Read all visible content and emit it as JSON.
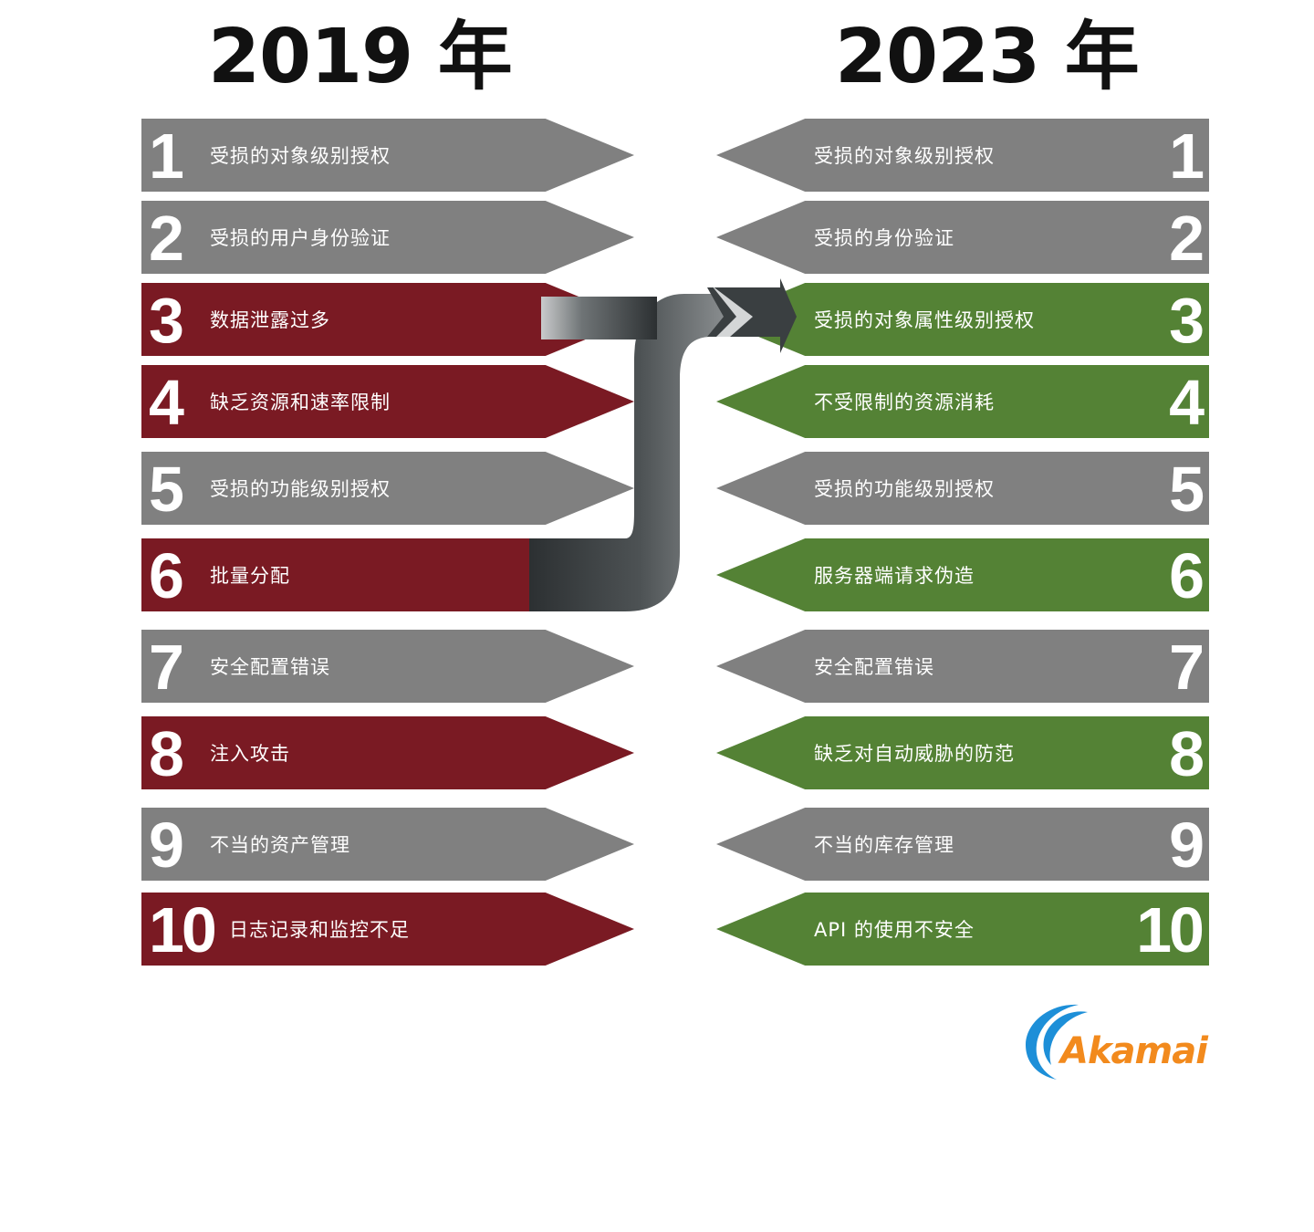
{
  "titles": {
    "left": "2019 年",
    "right": "2023 年"
  },
  "colors": {
    "gray": "#808080",
    "red": "#7a1a23",
    "green": "#548235",
    "logo_orange": "#f28a1d",
    "logo_blue": "#1d8fd8"
  },
  "left_list": [
    {
      "num": "1",
      "label": "受损的对象级别授权",
      "color": "gray"
    },
    {
      "num": "2",
      "label": "受损的用户身份验证",
      "color": "gray"
    },
    {
      "num": "3",
      "label": "数据泄露过多",
      "color": "red"
    },
    {
      "num": "4",
      "label": "缺乏资源和速率限制",
      "color": "red"
    },
    {
      "num": "5",
      "label": "受损的功能级别授权",
      "color": "gray"
    },
    {
      "num": "6",
      "label": "批量分配",
      "color": "red"
    },
    {
      "num": "7",
      "label": "安全配置错误",
      "color": "gray"
    },
    {
      "num": "8",
      "label": "注入攻击",
      "color": "red"
    },
    {
      "num": "9",
      "label": "不当的资产管理",
      "color": "gray"
    },
    {
      "num": "10",
      "label": "日志记录和监控不足",
      "color": "red"
    }
  ],
  "right_list": [
    {
      "num": "1",
      "label": "受损的对象级别授权",
      "color": "gray"
    },
    {
      "num": "2",
      "label": "受损的身份验证",
      "color": "gray"
    },
    {
      "num": "3",
      "label": "受损的对象属性级别授权",
      "color": "green"
    },
    {
      "num": "4",
      "label": "不受限制的资源消耗",
      "color": "green"
    },
    {
      "num": "5",
      "label": "受损的功能级别授权",
      "color": "gray"
    },
    {
      "num": "6",
      "label": "服务器端请求伪造",
      "color": "green"
    },
    {
      "num": "7",
      "label": "安全配置错误",
      "color": "gray"
    },
    {
      "num": "8",
      "label": "缺乏对自动威胁的防范",
      "color": "green"
    },
    {
      "num": "9",
      "label": "不当的库存管理",
      "color": "gray"
    },
    {
      "num": "10",
      "label": "API 的使用不安全",
      "color": "green"
    }
  ],
  "logo": {
    "text": "Akamai",
    "icon": "akamai-swoosh-icon"
  }
}
